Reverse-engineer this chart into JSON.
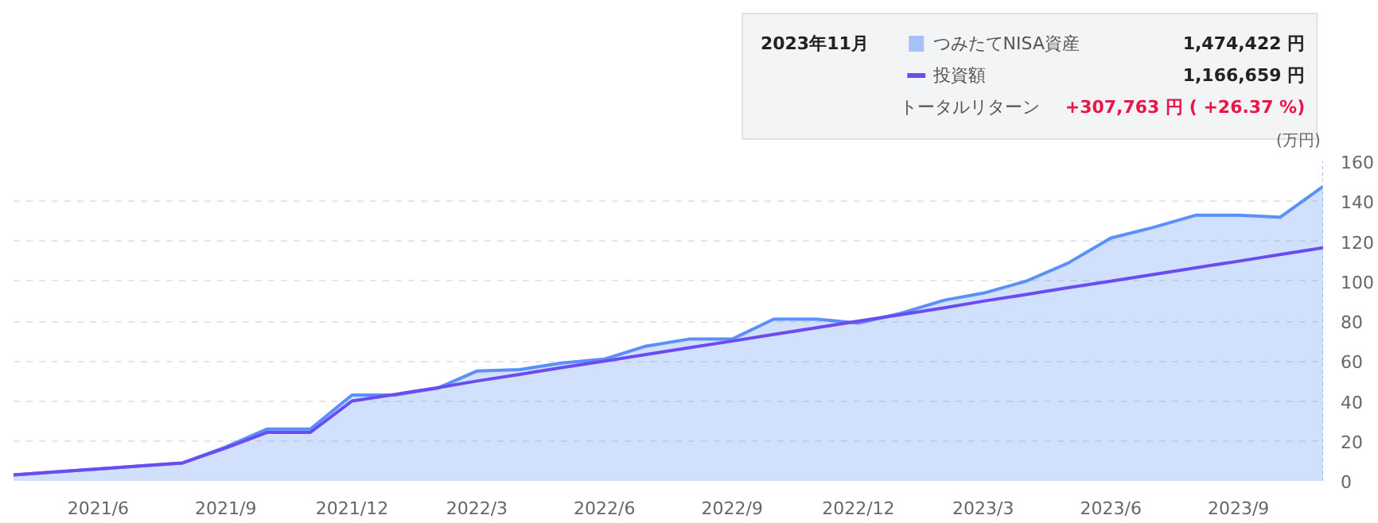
{
  "chart_data": {
    "type": "area",
    "ylabel": "(万円)",
    "legend": "top right",
    "grid": "y",
    "line_style": "solid",
    "marker": "none",
    "x": [
      "2021-04",
      "2021-05",
      "2021-06",
      "2021-07",
      "2021-08",
      "2021-09",
      "2021-10",
      "2021-11",
      "2021-12",
      "2022-01",
      "2022-02",
      "2022-03",
      "2022-04",
      "2022-05",
      "2022-06",
      "2022-07",
      "2022-08",
      "2022-09",
      "2022-10",
      "2022-11",
      "2022-12",
      "2023-01",
      "2023-02",
      "2023-03",
      "2023-04",
      "2023-05",
      "2023-06",
      "2023-07",
      "2023-08",
      "2023-09",
      "2023-10",
      "2023-11"
    ],
    "series": [
      {
        "name": "つみたてNISA資産",
        "color": "#5b8ff9",
        "values": [
          3,
          4.5,
          6,
          7.5,
          9,
          17,
          26,
          26,
          43,
          43,
          46.5,
          55,
          55.7,
          59,
          61,
          67.5,
          71,
          71,
          81,
          81,
          79,
          84,
          90.5,
          94,
          100,
          109,
          121.6,
          126.8,
          133,
          133,
          132,
          147.4
        ]
      },
      {
        "name": "投資額",
        "type": "line",
        "color": "#6a4cf0",
        "values": [
          3,
          4.5,
          6,
          7.5,
          9,
          16.5,
          24.3,
          24.3,
          40,
          43.3,
          46.7,
          50,
          53.3,
          56.7,
          60,
          63.3,
          66.7,
          70,
          73.3,
          76.7,
          80,
          83.3,
          86.7,
          90,
          93.3,
          96.7,
          100,
          103.3,
          106.7,
          110,
          113.3,
          116.7
        ]
      }
    ],
    "xlim": [
      "2021-04",
      "2023-11"
    ],
    "xticks": [
      {
        "value": "2021-06",
        "label": "2021/6"
      },
      {
        "value": "2021-09",
        "label": "2021/9"
      },
      {
        "value": "2021-12",
        "label": "2021/12"
      },
      {
        "value": "2022-03",
        "label": "2022/3"
      },
      {
        "value": "2022-06",
        "label": "2022/6"
      },
      {
        "value": "2022-09",
        "label": "2022/9"
      },
      {
        "value": "2022-12",
        "label": "2022/12"
      },
      {
        "value": "2023-03",
        "label": "2023/3"
      },
      {
        "value": "2023-06",
        "label": "2023/6"
      },
      {
        "value": "2023-09",
        "label": "2023/9"
      }
    ],
    "ylim": [
      0,
      160
    ],
    "yticks": [
      0,
      20,
      40,
      60,
      80,
      100,
      120,
      140,
      160
    ],
    "annotations": [
      "2023年11月",
      "1,474,422 円",
      "1,166,659 円",
      "トータルリターン",
      "+307,763 円 ( +26.37 %)"
    ]
  }
}
